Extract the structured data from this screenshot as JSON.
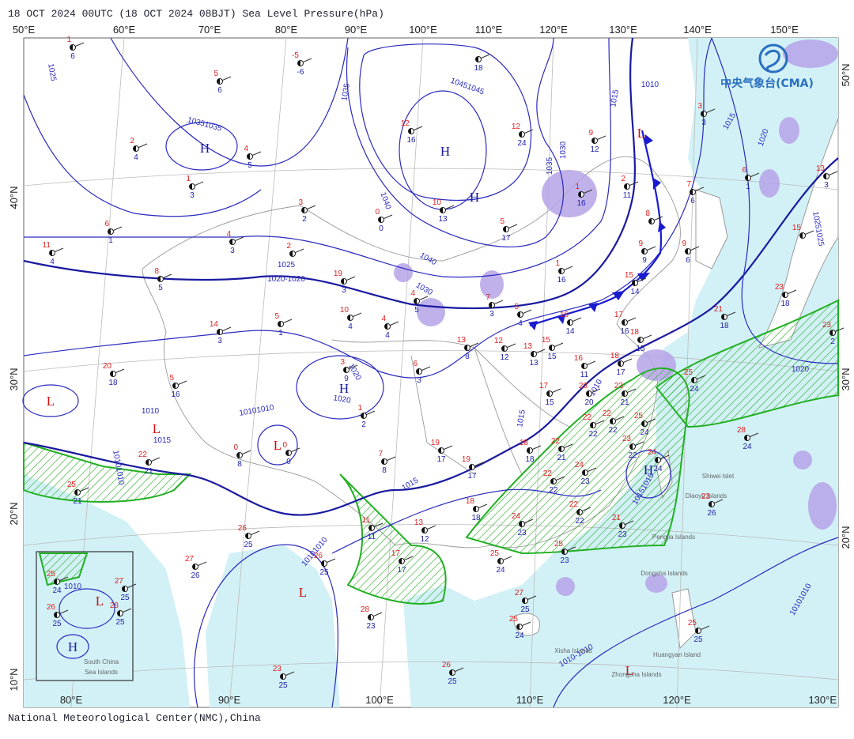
{
  "header": {
    "title": "18 OCT 2024 00UTC  (18 OCT 2024 08BJT) Sea Level Pressure(hPa)"
  },
  "logo": {
    "text": "中央气象台(CMA)"
  },
  "footer": {
    "text": "National Meteorological Center(NMC),China"
  },
  "axes": {
    "top": [
      "50°E",
      "60°E",
      "70°E",
      "80°E",
      "90°E",
      "100°E",
      "110°E",
      "120°E",
      "130°E",
      "140°E",
      "150°E"
    ],
    "bottom": [
      "80°E",
      "90°E",
      "100°E",
      "110°E",
      "120°E",
      "130°E"
    ],
    "left": [
      "40°N",
      "30°N",
      "20°N",
      "10°N"
    ],
    "right": [
      "50°N",
      "30°N",
      "20°N"
    ]
  },
  "pressure_centers": [
    "H",
    "H",
    "H",
    "H",
    "L",
    "L",
    "L",
    "L",
    "L",
    "H",
    "L",
    "H",
    "L"
  ],
  "isobar_labels": [
    "1025",
    "10351035",
    "1035",
    "10451045",
    "1040",
    "1040",
    "1030",
    "1020-1020",
    "1025",
    "1030",
    "1035",
    "1010",
    "1015",
    "1015",
    "1020",
    "10251025",
    "1020",
    "1020",
    "1020",
    "1010",
    "1015",
    "10101010",
    "10101010",
    "1015",
    "1015",
    "1010",
    "10151015",
    "10101010",
    "1010",
    "10101010",
    "1010-1010"
  ],
  "places": [
    "Shiwei Islet",
    "Diaoyu Islands",
    "Pengjia Islands",
    "Dongsha Islands",
    "Xisha Islands",
    "Huangyan Island",
    "Zhongsha Islands"
  ],
  "inset": {
    "line1": "South China",
    "line2": "Sea Islands"
  },
  "stations": [
    {
      "top": "1",
      "bottom": "6"
    },
    {
      "top": "-5",
      "bottom": "-6"
    },
    {
      "top": "5",
      "bottom": "6"
    },
    {
      "bottom": "18"
    },
    {
      "top": "2",
      "bottom": "4"
    },
    {
      "top": "4",
      "bottom": "5"
    },
    {
      "top": "1",
      "bottom": "3"
    },
    {
      "top": "6",
      "bottom": "1"
    },
    {
      "top": "11",
      "bottom": "4"
    },
    {
      "top": "4",
      "bottom": "3"
    },
    {
      "top": "3",
      "bottom": "2"
    },
    {
      "top": "12",
      "bottom": "16"
    },
    {
      "top": "12",
      "bottom": "24"
    },
    {
      "top": "9",
      "bottom": "12"
    },
    {
      "top": "10",
      "bottom": "13"
    },
    {
      "top": "0",
      "bottom": "0"
    },
    {
      "top": "5",
      "bottom": "17"
    },
    {
      "top": "1",
      "bottom": "16"
    },
    {
      "top": "2",
      "bottom": "11"
    },
    {
      "top": "7",
      "bottom": "6"
    },
    {
      "top": "6",
      "bottom": "1"
    },
    {
      "top": "3",
      "bottom": "3"
    },
    {
      "top": "13",
      "bottom": "3"
    },
    {
      "top": "8"
    },
    {
      "top": "9",
      "bottom": "9"
    },
    {
      "top": "9",
      "bottom": "6"
    },
    {
      "top": "15"
    },
    {
      "top": "23",
      "bottom": "18"
    },
    {
      "top": "21",
      "bottom": "18"
    },
    {
      "top": "23",
      "bottom": "2"
    },
    {
      "top": "2"
    },
    {
      "top": "8",
      "bottom": "5"
    },
    {
      "top": "19",
      "bottom": "3"
    },
    {
      "top": "14",
      "bottom": "3"
    },
    {
      "top": "5",
      "bottom": "1"
    },
    {
      "top": "10",
      "bottom": "4"
    },
    {
      "top": "4",
      "bottom": "4"
    },
    {
      "top": "4",
      "bottom": "5"
    },
    {
      "top": "7",
      "bottom": "3"
    },
    {
      "top": "5",
      "bottom": "4"
    },
    {
      "top": "1",
      "bottom": "16"
    },
    {
      "top": "15",
      "bottom": "14"
    },
    {
      "top": "17",
      "bottom": "16"
    },
    {
      "top": "18",
      "bottom": "15"
    },
    {
      "top": "16",
      "bottom": "14"
    },
    {
      "top": "20",
      "bottom": "18"
    },
    {
      "top": "5",
      "bottom": "16"
    },
    {
      "top": "3",
      "bottom": "9"
    },
    {
      "top": "1",
      "bottom": "2"
    },
    {
      "top": "6",
      "bottom": "3"
    },
    {
      "top": "13",
      "bottom": "8"
    },
    {
      "top": "12",
      "bottom": "12"
    },
    {
      "top": "13",
      "bottom": "13"
    },
    {
      "top": "15",
      "bottom": "15"
    },
    {
      "top": "16",
      "bottom": "11"
    },
    {
      "top": "18",
      "bottom": "17"
    },
    {
      "top": "17",
      "bottom": "15"
    },
    {
      "top": "20",
      "bottom": "20"
    },
    {
      "top": "23",
      "bottom": "21"
    },
    {
      "top": "22",
      "bottom": "22"
    },
    {
      "top": "22",
      "bottom": "22"
    },
    {
      "top": "25",
      "bottom": "24"
    },
    {
      "top": "23",
      "bottom": "22"
    },
    {
      "top": "24",
      "bottom": "24"
    },
    {
      "top": "25",
      "bottom": "24"
    },
    {
      "top": "28",
      "bottom": "24"
    },
    {
      "top": "22",
      "bottom": "21"
    },
    {
      "top": "0",
      "bottom": "8"
    },
    {
      "top": "0",
      "bottom": "0"
    },
    {
      "top": "7",
      "bottom": "8"
    },
    {
      "top": "19",
      "bottom": "17"
    },
    {
      "top": "19",
      "bottom": "17"
    },
    {
      "top": "18",
      "bottom": "18"
    },
    {
      "top": "22",
      "bottom": "21"
    },
    {
      "top": "24",
      "bottom": "23"
    },
    {
      "top": "22",
      "bottom": "22"
    },
    {
      "top": "22",
      "bottom": "22"
    },
    {
      "top": "21",
      "bottom": "23"
    },
    {
      "top": "25",
      "bottom": "21"
    },
    {
      "top": "18",
      "bottom": "18"
    },
    {
      "top": "13",
      "bottom": "12"
    },
    {
      "top": "24",
      "bottom": "23"
    },
    {
      "top": "11",
      "bottom": "11"
    },
    {
      "top": "26",
      "bottom": "25"
    },
    {
      "top": "17",
      "bottom": "17"
    },
    {
      "top": "25",
      "bottom": "24"
    },
    {
      "top": "25",
      "bottom": "23"
    },
    {
      "top": "26",
      "bottom": "25"
    },
    {
      "top": "27",
      "bottom": "26"
    },
    {
      "top": "27",
      "bottom": "25"
    },
    {
      "top": "25",
      "bottom": "24"
    },
    {
      "top": "28",
      "bottom": "23"
    },
    {
      "top": "26",
      "bottom": "25"
    },
    {
      "top": "23",
      "bottom": "25"
    },
    {
      "top": "25",
      "bottom": "25"
    },
    {
      "top": "23",
      "bottom": "26"
    },
    {
      "top": "25",
      "bottom": "24"
    },
    {
      "top": "26",
      "bottom": "25"
    },
    {
      "top": "27",
      "bottom": "25"
    },
    {
      "top": "28",
      "bottom": "25"
    }
  ]
}
